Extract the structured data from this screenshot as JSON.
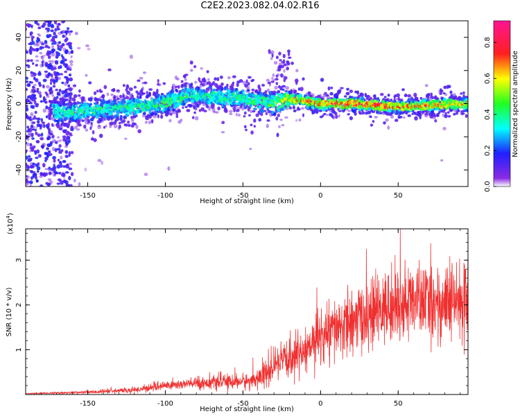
{
  "title": "C2E2.2023.082.04.02.R16",
  "chart_data": [
    {
      "type": "heatmap",
      "xlabel": "Height of straight line (km)",
      "ylabel": "Frequency (Hz)",
      "xlim": [
        -190,
        95
      ],
      "ylim": [
        -50,
        50
      ],
      "x_ticks": [
        -150,
        -100,
        -50,
        0,
        50
      ],
      "y_ticks": [
        -40,
        -20,
        0,
        20,
        40
      ],
      "colorbar": {
        "label": "Normalized spectral amplitude",
        "range": [
          0,
          0.92
        ],
        "ticks": [
          0.0,
          0.2,
          0.4,
          0.6,
          0.8
        ],
        "colormap": "rainbow (purple-blue-cyan-green-yellow-red-magenta)"
      },
      "ridge": {
        "description_points_x": [
          -160,
          -130,
          -100,
          -85,
          -50,
          -30,
          -20,
          0,
          25,
          50,
          95
        ],
        "center_freq": [
          -5,
          -3,
          0,
          5,
          3,
          0,
          3,
          0,
          0,
          -2,
          0
        ],
        "peak_amplitude": [
          0.45,
          0.45,
          0.5,
          0.45,
          0.5,
          0.55,
          0.7,
          0.85,
          0.9,
          0.8,
          0.75
        ]
      },
      "grid": false
    },
    {
      "type": "line",
      "xlabel": "Height of straight line (km)",
      "ylabel": "SNR (10 * v/v)",
      "y_multiplier_label": "(x10",
      "y_multiplier_exp": "4",
      "y_multiplier_close": ")",
      "xlim": [
        -190,
        95
      ],
      "ylim": [
        0,
        3.7
      ],
      "x_ticks": [
        -150,
        -100,
        -50,
        0,
        50
      ],
      "y_ticks": [
        1,
        2,
        3
      ],
      "series": [
        {
          "color": "#f03030",
          "envelope_x": [
            -190,
            -150,
            -120,
            -100,
            -80,
            -60,
            -45,
            -35,
            -25,
            -10,
            0,
            20,
            40,
            60,
            80,
            95
          ],
          "envelope_mean": [
            0.02,
            0.05,
            0.1,
            0.2,
            0.25,
            0.28,
            0.3,
            0.45,
            0.7,
            1.0,
            1.3,
            1.6,
            1.9,
            2.1,
            2.0,
            2.1
          ],
          "envelope_spread": [
            0.01,
            0.04,
            0.07,
            0.12,
            0.15,
            0.18,
            0.2,
            0.35,
            0.45,
            0.6,
            0.7,
            0.8,
            0.9,
            0.9,
            1.0,
            1.0
          ]
        }
      ],
      "grid": false
    }
  ]
}
